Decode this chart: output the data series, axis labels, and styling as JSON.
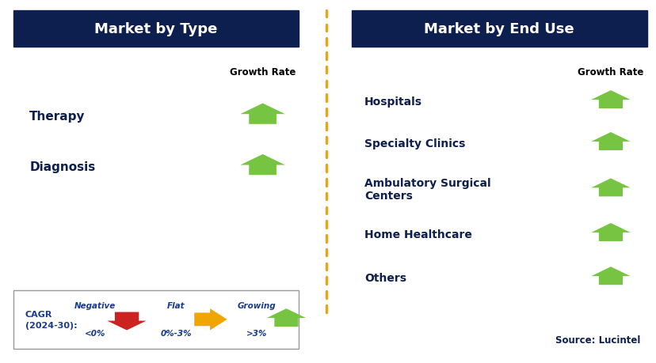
{
  "left_title": "Market by Type",
  "right_title": "Market by End Use",
  "left_items": [
    "Therapy",
    "Diagnosis"
  ],
  "right_items": [
    "Hospitals",
    "Specialty Clinics",
    "Ambulatory Surgical\nCenters",
    "Home Healthcare",
    "Others"
  ],
  "header_bg": "#0d1f4e",
  "header_fg": "#ffffff",
  "label_color": "#0d1f4e",
  "growth_rate_label": "Growth Rate",
  "green_arrow_color": "#76c442",
  "red_arrow_color": "#cc2222",
  "yellow_arrow_color": "#f0a500",
  "dashed_line_color": "#f0a500",
  "legend_text_color": "#1a3a8a",
  "source_text": "Source: Lucintel",
  "bg_color": "#ffffff",
  "border_color": "#999999",
  "figwidth": 8.29,
  "figheight": 4.6,
  "dpi": 100
}
